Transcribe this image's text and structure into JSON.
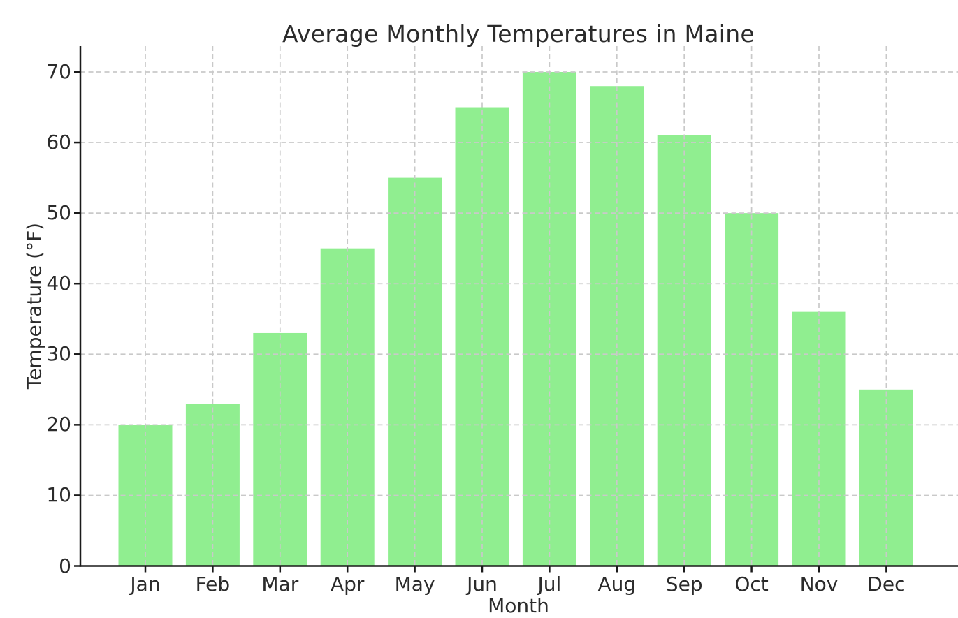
{
  "chart_data": {
    "type": "bar",
    "title": "Average Monthly Temperatures in Maine",
    "xlabel": "Month",
    "ylabel": "Temperature (°F)",
    "categories": [
      "Jan",
      "Feb",
      "Mar",
      "Apr",
      "May",
      "Jun",
      "Jul",
      "Aug",
      "Sep",
      "Oct",
      "Nov",
      "Dec"
    ],
    "values": [
      20,
      23,
      33,
      45,
      55,
      65,
      70,
      68,
      61,
      50,
      36,
      25
    ],
    "yticks": [
      0,
      10,
      20,
      30,
      40,
      50,
      60,
      70
    ],
    "ylim": [
      0,
      73.6
    ],
    "grid": true,
    "grid_style": "dashed",
    "grid_over_bars": true,
    "legend_position": "none",
    "bar_color": "#90EE90",
    "grid_color": "#c9c9c9",
    "axis_color": "#1a1a1a",
    "text_color": "#2b2b2b",
    "background_color": "#ffffff"
  }
}
